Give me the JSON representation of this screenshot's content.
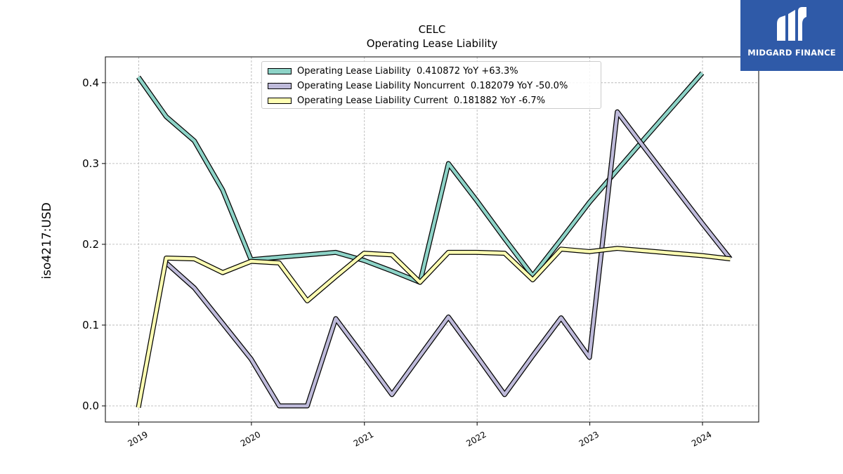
{
  "brand": {
    "name": "MIDGARD FINANCE",
    "bg_color": "#2f5aa8",
    "icon": "midgard-logo-icon"
  },
  "chart_data": {
    "type": "line",
    "title": "CELC",
    "subtitle": "Operating Lease Liability",
    "xlabel": "",
    "ylabel": "iso4217:USD",
    "x_ticks": [
      "2019",
      "2020",
      "2021",
      "2022",
      "2023",
      "2024"
    ],
    "y_ticks": [
      "0.0",
      "0.1",
      "0.2",
      "0.3",
      "0.4"
    ],
    "ylim": [
      -0.02,
      0.432
    ],
    "xlim": [
      "2018-09-15",
      "2024-07-01"
    ],
    "grid": true,
    "legend_position": "top-center",
    "series": [
      {
        "name": "Operating Lease Liability",
        "legend_label": "Operating Lease Liability  0.410872 YoY +63.3%",
        "color": "#8dd3c7",
        "x": [
          "2018-12-31",
          "2019-03-31",
          "2019-06-30",
          "2019-09-30",
          "2019-12-31",
          "2020-03-31",
          "2020-06-30",
          "2020-09-30",
          "2020-12-31",
          "2021-03-31",
          "2021-06-30",
          "2021-09-30",
          "2021-12-31",
          "2022-03-31",
          "2022-06-30",
          "2022-09-30",
          "2022-12-31",
          "2023-03-31",
          "2023-06-30",
          "2023-09-30",
          "2023-12-31"
        ],
        "values": [
          0.407,
          0.358,
          0.328,
          0.267,
          0.181,
          0.184,
          0.187,
          0.19,
          0.18,
          0.167,
          0.153,
          0.3,
          0.254,
          0.207,
          0.161,
          0.206,
          0.252,
          0.292,
          0.332,
          0.372,
          0.412
        ]
      },
      {
        "name": "Operating Lease Liability Noncurrent",
        "legend_label": "Operating Lease Liability Noncurrent  0.182079 YoY -50.0%",
        "color": "#bebada",
        "x": [
          "2019-03-31",
          "2019-06-30",
          "2019-09-30",
          "2019-12-31",
          "2020-03-31",
          "2020-06-30",
          "2020-09-30",
          "2020-12-31",
          "2021-03-31",
          "2021-06-30",
          "2021-09-30",
          "2021-12-31",
          "2022-03-31",
          "2022-06-30",
          "2022-09-30",
          "2022-12-31",
          "2023-03-31",
          "2023-06-30",
          "2023-09-30",
          "2023-12-31",
          "2024-03-31"
        ],
        "values": [
          0.177,
          0.146,
          0.102,
          0.058,
          0.0,
          0.0,
          0.108,
          0.061,
          0.014,
          0.062,
          0.11,
          0.062,
          0.014,
          0.062,
          0.109,
          0.06,
          0.364,
          0.318,
          0.272,
          0.226,
          0.182
        ]
      },
      {
        "name": "Operating Lease Liability Current",
        "legend_label": "Operating Lease Liability Current  0.181882 YoY -6.7%",
        "color": "#ffffb3",
        "x": [
          "2018-12-31",
          "2019-03-31",
          "2019-06-30",
          "2019-09-30",
          "2019-12-31",
          "2020-03-31",
          "2020-06-30",
          "2020-09-30",
          "2020-12-31",
          "2021-03-31",
          "2021-06-30",
          "2021-09-30",
          "2021-12-31",
          "2022-03-31",
          "2022-06-30",
          "2022-09-30",
          "2022-12-31",
          "2023-03-31",
          "2023-06-30",
          "2023-09-30",
          "2023-12-31",
          "2024-03-31"
        ],
        "values": [
          -0.002,
          0.183,
          0.182,
          0.165,
          0.179,
          0.177,
          0.13,
          0.16,
          0.189,
          0.187,
          0.153,
          0.19,
          0.19,
          0.189,
          0.156,
          0.194,
          0.191,
          0.195,
          0.192,
          0.189,
          0.186,
          0.182
        ]
      }
    ]
  }
}
